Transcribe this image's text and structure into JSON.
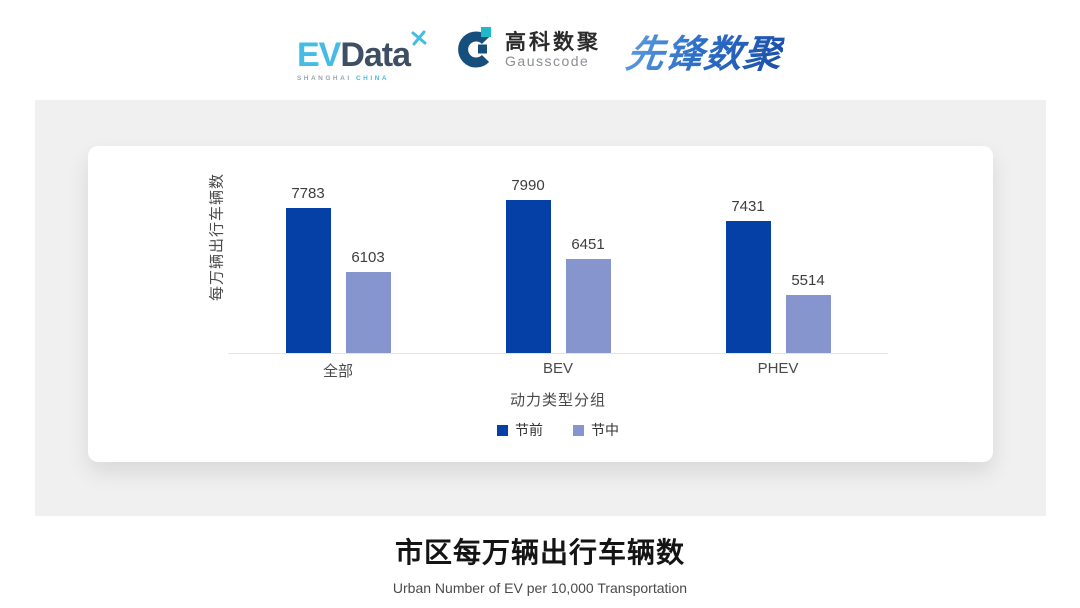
{
  "header": {
    "evdata": {
      "ev": "EV",
      "data": "Data",
      "sub_shanghai": "SHANGHAI",
      "sub_china": "CHINA"
    },
    "gausscode": {
      "cn": "高科数聚",
      "en": "Gausscode"
    },
    "pioneer": {
      "text": "先锋数聚"
    }
  },
  "chart_data": {
    "type": "bar",
    "categories": [
      "全部",
      "BEV",
      "PHEV"
    ],
    "series": [
      {
        "name": "节前",
        "color": "#0540A6",
        "values": [
          7783,
          7990,
          7431
        ]
      },
      {
        "name": "节中",
        "color": "#8795CF",
        "values": [
          6103,
          6451,
          5514
        ]
      }
    ],
    "xlabel": "动力类型分组",
    "ylabel": "每万辆出行车辆数",
    "ylim": [
      4000,
      9400
    ],
    "grid": false,
    "legend_position": "bottom",
    "value_labels": true
  },
  "footer": {
    "title": "市区每万辆出行车辆数",
    "subtitle": "Urban Number of EV per 10,000 Transportation"
  },
  "colors": {
    "series_pre": "#0540A6",
    "series_during": "#8795CF",
    "panel_bg": "#F0F0F1",
    "card_bg": "#FFFFFF",
    "axis_line": "#E4E4E4",
    "evdata_cyan": "#45BCE4",
    "evdata_dark": "#3E4F63",
    "gausscode_navy": "#174F7C",
    "gausscode_teal": "#1FB9C9",
    "pioneer_blue": "#2E6FC8"
  }
}
